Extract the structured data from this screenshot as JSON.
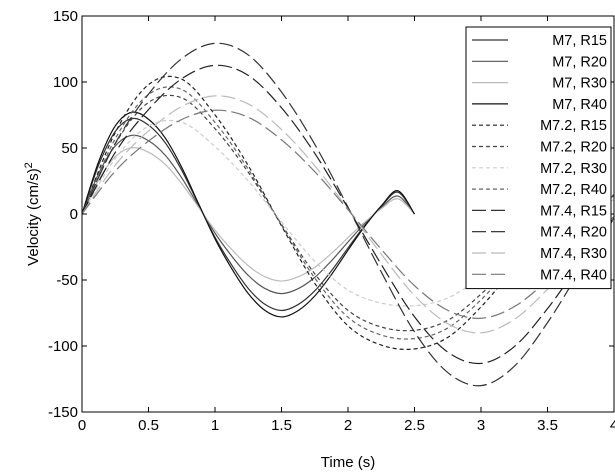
{
  "chart_data": {
    "type": "line",
    "title": "",
    "xlabel": "Time (s)",
    "ylabel": "Velocity (cm/s)",
    "ylabel_superscript": "2",
    "xlim": [
      0,
      4
    ],
    "ylim": [
      -150,
      150
    ],
    "xticks": [
      "0",
      "0.5",
      "1",
      "1.5",
      "2",
      "2.5",
      "3",
      "3.5",
      "4"
    ],
    "yticks": [
      "150",
      "100",
      "50",
      "0",
      "-50",
      "-100",
      "-150"
    ],
    "grid": false,
    "legend_position": "top-right",
    "series": [
      {
        "name": "M7, R15",
        "color": "#333333",
        "dash": "solid",
        "duration": 2.5,
        "x": [
          0,
          0.125,
          0.25,
          0.375,
          0.5,
          0.625,
          0.75,
          0.875,
          1,
          1.125,
          1.25,
          1.375,
          1.5,
          1.625,
          1.75,
          1.875,
          2,
          2.125,
          2.25,
          2.375,
          2.5
        ],
        "y": [
          0,
          37.1,
          62.5,
          72.3,
          67.3,
          54.1,
          33.1,
          7.6,
          -17.6,
          -38.6,
          -56.4,
          -68.4,
          -73.1,
          -68.6,
          -58.2,
          -43.1,
          -25.7,
          -8.9,
          5.7,
          16.5,
          0
        ]
      },
      {
        "name": "M7, R20",
        "color": "#555555",
        "dash": "solid",
        "duration": 2.5,
        "x": [
          0,
          0.125,
          0.25,
          0.375,
          0.5,
          0.625,
          0.75,
          0.875,
          1,
          1.125,
          1.25,
          1.375,
          1.5,
          1.625,
          1.75,
          1.875,
          2,
          2.125,
          2.25,
          2.375,
          2.5
        ],
        "y": [
          0,
          30.6,
          51.5,
          59.6,
          55.5,
          44.6,
          27.3,
          6.3,
          -14.5,
          -31.8,
          -46.5,
          -56.4,
          -60.3,
          -56.6,
          -48.0,
          -35.5,
          -21.2,
          -7.3,
          4.7,
          13.6,
          0
        ]
      },
      {
        "name": "M7, R30",
        "color": "#bbbbbb",
        "dash": "solid",
        "duration": 2.5,
        "x": [
          0,
          0.125,
          0.25,
          0.375,
          0.5,
          0.625,
          0.75,
          0.875,
          1,
          1.125,
          1.25,
          1.375,
          1.5,
          1.625,
          1.75,
          1.875,
          2,
          2.125,
          2.25,
          2.375,
          2.5
        ],
        "y": [
          0,
          25.8,
          43.4,
          50.2,
          46.8,
          37.6,
          23.0,
          5.3,
          -12.2,
          -26.8,
          -39.2,
          -47.5,
          -50.8,
          -47.6,
          -40.4,
          -29.9,
          -17.9,
          -6.2,
          4.0,
          11.5,
          0
        ]
      },
      {
        "name": "M7, R40",
        "color": "#111111",
        "dash": "solid",
        "duration": 2.5,
        "x": [
          0,
          0.125,
          0.25,
          0.375,
          0.5,
          0.625,
          0.75,
          0.875,
          1,
          1.125,
          1.25,
          1.375,
          1.5,
          1.625,
          1.75,
          1.875,
          2,
          2.125,
          2.25,
          2.375,
          2.5
        ],
        "y": [
          0,
          39.6,
          66.7,
          77.1,
          71.8,
          57.7,
          35.3,
          8.1,
          -18.8,
          -41.2,
          -60.2,
          -73.0,
          -78.0,
          -73.2,
          -62.1,
          -46.0,
          -27.4,
          -9.5,
          6.1,
          17.6,
          0
        ]
      },
      {
        "name": "M7.2, R15",
        "color": "#222222",
        "dash": "4,3",
        "duration": 3.0,
        "x": [
          0,
          0.25,
          0.5,
          0.75,
          1,
          1.25,
          1.5,
          1.75,
          2,
          2.25,
          2.5,
          2.75,
          3,
          3.25,
          3.5,
          3.75,
          4
        ],
        "y": [
          0,
          61.7,
          98.0,
          102.1,
          75.1,
          36.7,
          -9.0,
          -52.5,
          -84.7,
          -99.3,
          -102.2,
          -93.5,
          -70.4,
          -41.3,
          -14.9,
          4.1,
          15.8
        ]
      },
      {
        "name": "M7.2, R20",
        "color": "#444444",
        "dash": "4,3",
        "duration": 3.0,
        "x": [
          0,
          0.25,
          0.5,
          0.75,
          1,
          1.25,
          1.5,
          1.75,
          2,
          2.25,
          2.5,
          2.75,
          3,
          3.25,
          3.5,
          3.75,
          4
        ],
        "y": [
          0,
          53.2,
          84.5,
          88.0,
          64.7,
          31.6,
          -7.8,
          -45.3,
          -73.0,
          -85.6,
          -88.1,
          -80.6,
          -60.7,
          -35.6,
          -12.8,
          3.5,
          13.6
        ]
      },
      {
        "name": "M7.2, R30",
        "color": "#cccccc",
        "dash": "4,3",
        "duration": 3.0,
        "x": [
          0,
          0.25,
          0.5,
          0.75,
          1,
          1.25,
          1.5,
          1.75,
          2,
          2.25,
          2.5,
          2.75,
          3,
          3.25,
          3.5,
          3.75,
          4
        ],
        "y": [
          0,
          42.0,
          66.6,
          69.4,
          51.1,
          25.0,
          -6.1,
          -35.7,
          -57.6,
          -67.5,
          -69.5,
          -63.6,
          -47.9,
          -28.1,
          -10.1,
          2.8,
          10.7
        ]
      },
      {
        "name": "M7.2, R40",
        "color": "#666666",
        "dash": "4,3",
        "duration": 3.0,
        "x": [
          0,
          0.25,
          0.5,
          0.75,
          1,
          1.25,
          1.5,
          1.75,
          2,
          2.25,
          2.5,
          2.75,
          3,
          3.25,
          3.5,
          3.75,
          4
        ],
        "y": [
          0,
          57.0,
          90.5,
          94.3,
          69.4,
          33.9,
          -8.3,
          -48.5,
          -78.2,
          -91.7,
          -94.4,
          -86.4,
          -65.0,
          -38.2,
          -13.8,
          3.8,
          14.6
        ]
      },
      {
        "name": "M7.4, R15",
        "color": "#333333",
        "dash": "14,5",
        "duration": 3.0,
        "x": [
          0,
          0.25,
          0.5,
          0.75,
          1,
          1.25,
          1.5,
          1.75,
          2,
          2.25,
          2.5,
          2.75,
          3,
          3.25,
          3.5,
          3.75,
          4
        ],
        "y": [
          0,
          53.5,
          90.8,
          117.7,
          129.3,
          120.5,
          92.4,
          52.8,
          5.2,
          -43.9,
          -89.3,
          -120.1,
          -130.0,
          -115.4,
          -82.3,
          -42.0,
          -3.2
        ]
      },
      {
        "name": "M7.4, R20",
        "color": "#222222",
        "dash": "14,5",
        "duration": 3.0,
        "x": [
          0,
          0.25,
          0.5,
          0.75,
          1,
          1.25,
          1.5,
          1.75,
          2,
          2.25,
          2.5,
          2.75,
          3,
          3.25,
          3.5,
          3.75,
          4
        ],
        "y": [
          0,
          46.6,
          79.1,
          102.5,
          112.6,
          105.0,
          80.5,
          46.0,
          4.5,
          -38.2,
          -77.8,
          -104.6,
          -113.2,
          -100.5,
          -71.7,
          -36.6,
          -2.8
        ]
      },
      {
        "name": "M7.4, R30",
        "color": "#bbbbbb",
        "dash": "14,5",
        "duration": 3.0,
        "x": [
          0,
          0.25,
          0.5,
          0.75,
          1,
          1.25,
          1.5,
          1.75,
          2,
          2.25,
          2.5,
          2.75,
          3,
          3.25,
          3.5,
          3.75,
          4
        ],
        "y": [
          0,
          37.0,
          62.9,
          81.5,
          89.5,
          83.4,
          64.0,
          36.6,
          3.6,
          -30.4,
          -61.8,
          -83.1,
          -90.0,
          -79.9,
          -57.0,
          -29.1,
          -2.2
        ]
      },
      {
        "name": "M7.4, R40",
        "color": "#777777",
        "dash": "14,5",
        "duration": 3.0,
        "x": [
          0,
          0.25,
          0.5,
          0.75,
          1,
          1.25,
          1.5,
          1.75,
          2,
          2.25,
          2.5,
          2.75,
          3,
          3.25,
          3.5,
          3.75,
          4
        ],
        "y": [
          0,
          32.5,
          55.2,
          71.6,
          78.6,
          73.3,
          56.2,
          32.1,
          3.2,
          -26.7,
          -54.3,
          -73.0,
          -79.0,
          -70.2,
          -50.1,
          -25.5,
          -1.9
        ]
      }
    ]
  }
}
